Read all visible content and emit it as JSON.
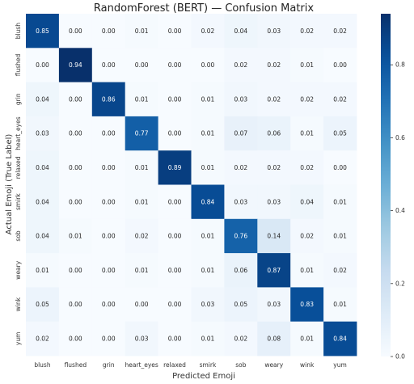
{
  "chart_data": {
    "type": "heatmap",
    "title": "RandomForest (BERT) — Confusion Matrix",
    "xlabel": "Predicted Emoji",
    "ylabel": "Actual Emoji (True Label)",
    "x_categories": [
      "blush",
      "flushed",
      "grin",
      "heart_eyes",
      "relaxed",
      "smirk",
      "sob",
      "weary",
      "wink",
      "yum"
    ],
    "y_categories": [
      "blush",
      "flushed",
      "grin",
      "heart_eyes",
      "relaxed",
      "smirk",
      "sob",
      "weary",
      "wink",
      "yum"
    ],
    "values": [
      [
        0.85,
        0.0,
        0.0,
        0.01,
        0.0,
        0.02,
        0.04,
        0.03,
        0.02,
        0.02
      ],
      [
        0.0,
        0.94,
        0.0,
        0.0,
        0.0,
        0.0,
        0.02,
        0.02,
        0.01,
        0.0
      ],
      [
        0.04,
        0.0,
        0.86,
        0.01,
        0.0,
        0.01,
        0.03,
        0.02,
        0.02,
        0.02
      ],
      [
        0.03,
        0.0,
        0.0,
        0.77,
        0.0,
        0.01,
        0.07,
        0.06,
        0.01,
        0.05
      ],
      [
        0.04,
        0.0,
        0.0,
        0.01,
        0.89,
        0.01,
        0.02,
        0.02,
        0.02,
        0.0
      ],
      [
        0.04,
        0.0,
        0.0,
        0.01,
        0.0,
        0.84,
        0.03,
        0.03,
        0.04,
        0.01
      ],
      [
        0.04,
        0.01,
        0.0,
        0.02,
        0.0,
        0.01,
        0.76,
        0.14,
        0.02,
        0.01
      ],
      [
        0.01,
        0.0,
        0.0,
        0.01,
        0.0,
        0.01,
        0.06,
        0.87,
        0.01,
        0.02
      ],
      [
        0.05,
        0.0,
        0.0,
        0.0,
        0.0,
        0.03,
        0.05,
        0.03,
        0.83,
        0.01
      ],
      [
        0.02,
        0.0,
        0.0,
        0.03,
        0.0,
        0.01,
        0.02,
        0.08,
        0.01,
        0.84
      ]
    ],
    "colormap": "Blues",
    "vmin": 0.0,
    "vmax": 0.94,
    "colorbar_ticks": [
      0.0,
      0.2,
      0.4,
      0.6,
      0.8
    ],
    "colorbar_tick_labels": [
      "0.0",
      "0.2",
      "0.4",
      "0.6",
      "0.8"
    ]
  }
}
